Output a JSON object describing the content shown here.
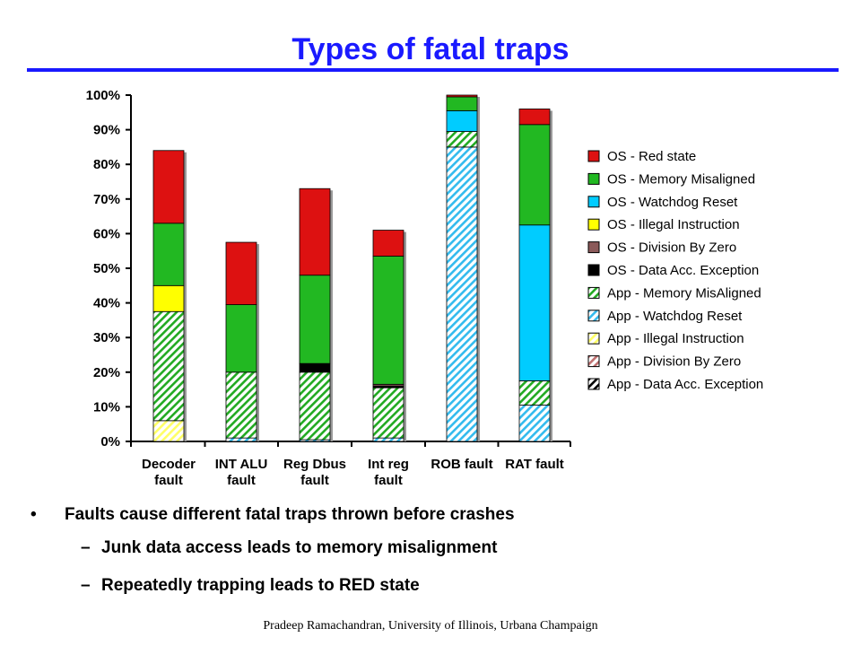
{
  "slide": {
    "title": "Types of fatal traps",
    "footer": "Pradeep Ramachandran, University of Illinois, Urbana Champaign"
  },
  "bullets": [
    {
      "marker": "•",
      "text": "Faults cause different fatal traps thrown before crashes",
      "level": 1
    },
    {
      "marker": "–",
      "text": "Junk data access leads to memory misalignment",
      "level": 2
    },
    {
      "marker": "–",
      "text": "Repeatedly trapping leads to RED state",
      "level": 2
    }
  ],
  "chart_data": {
    "type": "bar",
    "stacked": true,
    "title": "",
    "xlabel": "",
    "ylabel": "",
    "ylim": [
      0,
      100
    ],
    "y_ticks": [
      "0%",
      "10%",
      "20%",
      "30%",
      "40%",
      "50%",
      "60%",
      "70%",
      "80%",
      "90%",
      "100%"
    ],
    "y_tick_values": [
      0,
      10,
      20,
      30,
      40,
      50,
      60,
      70,
      80,
      90,
      100
    ],
    "grid": false,
    "legend_position": "right",
    "categories": [
      [
        "Decoder",
        "fault"
      ],
      [
        "INT ALU",
        "fault"
      ],
      [
        "Reg Dbus",
        "fault"
      ],
      [
        "Int reg",
        "fault"
      ],
      [
        "ROB fault"
      ],
      [
        "RAT fault"
      ]
    ],
    "series": [
      {
        "name": "App - Data Acc. Exception",
        "color": "#000000",
        "pattern": "hatch",
        "values": [
          0,
          0,
          0,
          0,
          0,
          0
        ]
      },
      {
        "name": "App - Division By Zero",
        "color": "#c07070",
        "pattern": "hatch",
        "values": [
          0,
          0,
          0,
          0,
          0,
          0
        ]
      },
      {
        "name": "App - Illegal Instruction",
        "color": "#ffff66",
        "pattern": "hatch",
        "values": [
          6,
          0,
          0,
          0,
          0,
          0
        ]
      },
      {
        "name": "App - Watchdog Reset",
        "color": "#33bbee",
        "pattern": "hatch",
        "values": [
          0,
          1,
          0.5,
          1,
          85,
          10.5
        ]
      },
      {
        "name": "App - Memory MisAligned",
        "color": "#22aa22",
        "pattern": "hatch",
        "values": [
          31.5,
          19,
          19.5,
          14.5,
          4.5,
          7
        ]
      },
      {
        "name": "OS - Data Acc. Exception",
        "color": "#000000",
        "pattern": "solid",
        "values": [
          0,
          0,
          2.5,
          0.5,
          0,
          0
        ]
      },
      {
        "name": "OS - Division By Zero",
        "color": "#8b5a5a",
        "pattern": "solid",
        "values": [
          0,
          0,
          0,
          0.5,
          0,
          0
        ]
      },
      {
        "name": "OS - Illegal Instruction",
        "color": "#ffff00",
        "pattern": "solid",
        "values": [
          7.5,
          0,
          0,
          0,
          0,
          0
        ]
      },
      {
        "name": "OS - Watchdog Reset",
        "color": "#00ccff",
        "pattern": "solid",
        "values": [
          0,
          0,
          0,
          0,
          6,
          45
        ]
      },
      {
        "name": "OS - Memory Misaligned",
        "color": "#22b822",
        "pattern": "solid",
        "values": [
          18,
          19.5,
          25.5,
          37,
          4,
          29
        ]
      },
      {
        "name": "OS - Red state",
        "color": "#dd1111",
        "pattern": "solid",
        "values": [
          21,
          18,
          25,
          7.5,
          0.5,
          4.5
        ]
      }
    ],
    "legend_order": [
      "OS - Red state",
      "OS - Memory Misaligned",
      "OS - Watchdog Reset",
      "OS - Illegal Instruction",
      "OS - Division By Zero",
      "OS - Data Acc. Exception",
      "App - Memory MisAligned",
      "App - Watchdog Reset",
      "App - Illegal Instruction",
      "App - Division By Zero",
      "App - Data Acc. Exception"
    ]
  }
}
